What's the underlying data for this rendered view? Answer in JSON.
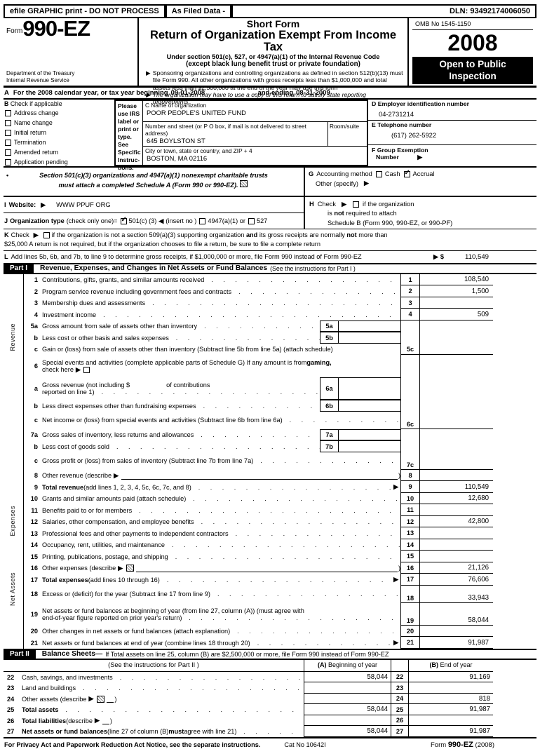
{
  "glyphs": {
    "arrow": "▶",
    "left_arrow": "◀",
    "bullet": "•",
    "dollar": "$",
    "dot": " ."
  },
  "topbar": {
    "left": "efile GRAPHIC print - DO NOT PROCESS",
    "mid": "As Filed Data -",
    "dln": "DLN: 93492174006050"
  },
  "header": {
    "form_word": "Form",
    "form_number": "990-EZ",
    "dept_line1": "Department of the Treasury",
    "dept_line2": "Internal Revenue Service",
    "short_form": "Short Form",
    "title": "Return of Organization Exempt From Income Tax",
    "under_section": "Under section 501(c), 527, or 4947(a)(1) of the Internal Revenue Code",
    "except": "(except black lung benefit trust or private foundation)",
    "bullet1": "Sponsoring organizations and controlling organizations as defined in section 512(b)(13) must file Form 990. All other organizations with gross receipts less than $1,000,000 and total assets less than $2,500,000 at the end of the year may use this form",
    "bullet2": "The organization may have to use a copy of this return to satisfy state reporting requirements.",
    "omb": "OMB No 1545-1150",
    "year": "2008",
    "open1": "Open to Public",
    "open2": "Inspection"
  },
  "line_a": {
    "prefix": "A",
    "text": "For the 2008 calendar year, or tax year beginning",
    "begin_date": "09-01-2008",
    "mid": ", and ending",
    "end_date": "08-31-2009"
  },
  "box_b": {
    "prefix": "B",
    "title": "Check if applicable",
    "items": [
      "Address change",
      "Name change",
      "Initial return",
      "Termination",
      "Amended return",
      "Application pending"
    ]
  },
  "label_col": [
    "Please",
    "use IRS",
    "label or",
    "print or",
    "type.",
    "See",
    "Specific",
    "Instruc-",
    "tions."
  ],
  "box_c": {
    "name_label": "C Name of organization",
    "name": "POOR PEOPLE'S UNITED FUND",
    "street_label": "Number and street (or P O box, if mail is not delivered to street address)",
    "room_label": "Room/suite",
    "street": "645 BOYLSTON ST",
    "city_label": "City or town, state or country, and ZIP + 4",
    "city": "BOSTON, MA 02116"
  },
  "box_d": {
    "label": "D Employer identification number",
    "value": "04-2731214"
  },
  "box_e": {
    "label": "E Telephone number",
    "value": "(617) 262-5922"
  },
  "box_f": {
    "line1": "F Group Exemption",
    "line2": "Number"
  },
  "notice_501": {
    "line1": "Section 501(c)(3) organizations and 4947(a)(1) nonexempt charitable trusts",
    "line2": "must attach a completed Schedule A (Form 990 or 990-EZ)."
  },
  "box_g": {
    "prefix": "G",
    "label": "Accounting method",
    "cash": "Cash",
    "accrual": "Accrual",
    "other": "Other (specify)"
  },
  "box_h": {
    "prefix": "H",
    "check": "Check",
    "text1": "if the organization",
    "text2a": "is ",
    "text2b": "not",
    "text2c": " required to attach",
    "text3": "Schedule B (Form 990, 990-EZ, or 990-PF)"
  },
  "box_i": {
    "prefix": "I",
    "label": "Website:",
    "value": "WWW PPUF ORG"
  },
  "box_j": {
    "prefix": "J",
    "label": "Organization type",
    "paren": "(check only one)=",
    "opt1": "501(c) (3)",
    "insert": "(insert no )",
    "opt2": "4947(a)(1) or",
    "opt3": "527"
  },
  "box_k": {
    "prefix": "K",
    "check": "Check",
    "line1a": "if the organization is not a section 509(a)(3) supporting organization ",
    "line1b": "and",
    "line1c": " its gross receipts are normally ",
    "line1d": "not",
    "line1e": " more than",
    "line2": "$25,000  A return is not required, but if the organization chooses to file a return, be sure to file a complete return"
  },
  "line_l": {
    "prefix": "L",
    "text": "Add lines 5b, 6b, and 7b, to line 9 to determine gross receipts, if $1,000,000 or more, file Form 990 instead of Form 990-EZ",
    "amount": "110,549"
  },
  "part1": {
    "tag": "Part I",
    "title": "Revenue, Expenses, and Changes in Net Assets or Fund Balances",
    "subtitle": "(See the instructions for Part I )"
  },
  "side_labels": {
    "revenue": "Revenue",
    "expenses": "Expenses",
    "net_assets": "Net Assets"
  },
  "part1_rows": [
    {
      "num": "1",
      "lines": [
        [
          {
            "t": "Contributions, gifts, grants, and similar amounts received"
          }
        ]
      ],
      "dots": true,
      "box": "1",
      "value": "108,540",
      "rule": true
    },
    {
      "num": "2",
      "lines": [
        [
          {
            "t": "Program service revenue including government fees and contracts"
          }
        ]
      ],
      "dots": true,
      "box": "2",
      "value": "1,500",
      "rule": true
    },
    {
      "num": "3",
      "lines": [
        [
          {
            "t": "Membership dues and assessments"
          }
        ]
      ],
      "dots": true,
      "box": "3",
      "value": "",
      "rule": true
    },
    {
      "num": "4",
      "lines": [
        [
          {
            "t": "Investment income"
          }
        ]
      ],
      "dots": true,
      "box": "4",
      "value": "509",
      "rule": true
    },
    {
      "num": "5a",
      "lines": [
        [
          {
            "t": "Gross amount from sale of assets other than inventory"
          }
        ]
      ],
      "dots": true,
      "inner": "5a"
    },
    {
      "num": "b",
      "lines": [
        [
          {
            "t": "Less  cost or other basis and sales expenses"
          }
        ]
      ],
      "dots": true,
      "inner": "5b"
    },
    {
      "num": "c",
      "lines": [
        [
          {
            "t": "Gain or (loss) from sale of assets other than inventory (Subtract line 5b from line 5a) (attach schedule)"
          }
        ]
      ],
      "box": "5c",
      "value": "",
      "rule": true
    },
    {
      "num": "6",
      "h": 32,
      "lines": [
        [
          {
            "t": "Special events and activities (complete applicable parts of Schedule G)  If any amount is from "
          },
          {
            "t": "gaming,",
            "b": true
          }
        ],
        [
          {
            "t": "check here"
          }
        ]
      ],
      "checkbox": true
    },
    {
      "num": "a",
      "h": 32,
      "lines": [
        [
          {
            "t": "Gross revenue (not including $"
          },
          {
            "sp": 52
          },
          {
            "t": "of contributions"
          }
        ],
        [
          {
            "t": "reported on line 1)"
          }
        ]
      ],
      "dots": true,
      "inner": "6a"
    },
    {
      "num": "b",
      "lines": [
        [
          {
            "t": "Less  direct expenses other than fundraising expenses"
          }
        ]
      ],
      "dots": true,
      "inner": "6b"
    },
    {
      "num": "c",
      "h": 25,
      "low": true,
      "lines": [
        [
          {
            "t": "Net income or (loss) from special events and activities (Subtract line 6b from line 6a)"
          }
        ]
      ],
      "dots": true,
      "box": "6c",
      "value": "",
      "rule": true
    },
    {
      "num": "7a",
      "lines": [
        [
          {
            "t": "Gross sales of inventory, less returns and allowances"
          }
        ]
      ],
      "dots": true,
      "inner": "7a"
    },
    {
      "num": "b",
      "lines": [
        [
          {
            "t": "Less  cost of goods sold"
          }
        ]
      ],
      "dots": true,
      "inner": "7b"
    },
    {
      "num": "c",
      "h": 25,
      "low": true,
      "lines": [
        [
          {
            "t": "Gross profit or (loss) from sales of inventory (Subtract line 7b from line 7a)"
          }
        ]
      ],
      "dots": true,
      "box": "7c",
      "value": "",
      "rule": true
    },
    {
      "num": "8",
      "lines": [
        [
          {
            "t": "Other revenue (describe"
          }
        ]
      ],
      "describe": true,
      "box": "8",
      "value": "",
      "rule": true
    },
    {
      "num": "9",
      "lines": [
        [
          {
            "t": "Total revenue ",
            "b": true
          },
          {
            "t": "(add lines 1, 2, 3, 4, 5c, 6c, 7c, and 8)"
          }
        ]
      ],
      "dots": true,
      "arrow": true,
      "box": "9",
      "value": "110,549",
      "rule": true
    },
    {
      "num": "10",
      "lines": [
        [
          {
            "t": "Grants and similar amounts paid (attach schedule)"
          }
        ]
      ],
      "dots": true,
      "box": "10",
      "value": "12,680",
      "rule": true
    },
    {
      "num": "11",
      "lines": [
        [
          {
            "t": "Benefits paid to or for members"
          }
        ]
      ],
      "dots": true,
      "box": "11",
      "value": "",
      "rule": true
    },
    {
      "num": "12",
      "lines": [
        [
          {
            "t": "Salaries, other compensation, and employee benefits"
          }
        ]
      ],
      "dots": true,
      "box": "12",
      "value": "42,800",
      "rule": true
    },
    {
      "num": "13",
      "lines": [
        [
          {
            "t": "Professional fees and other payments to independent contractors"
          }
        ]
      ],
      "dots": true,
      "box": "13",
      "value": "",
      "rule": true
    },
    {
      "num": "14",
      "lines": [
        [
          {
            "t": "Occupancy, rent, utilities, and maintenance"
          }
        ]
      ],
      "dots": true,
      "box": "14",
      "value": "",
      "rule": true
    },
    {
      "num": "15",
      "lines": [
        [
          {
            "t": "Printing, publications, postage, and shipping"
          }
        ]
      ],
      "dots": true,
      "box": "15",
      "value": "",
      "rule": true
    },
    {
      "num": "16",
      "lines": [
        [
          {
            "t": "Other expenses (describe"
          }
        ]
      ],
      "describe": true,
      "icon": true,
      "box": "16",
      "value": "21,126",
      "rule": true
    },
    {
      "num": "17",
      "lines": [
        [
          {
            "t": "Total expenses ",
            "b": true
          },
          {
            "t": "(add lines 10 through 16)"
          }
        ]
      ],
      "dots": true,
      "arrow": true,
      "box": "17",
      "value": "76,606",
      "rule": true
    },
    {
      "num": "18",
      "h": 25,
      "low": true,
      "lines": [
        [
          {
            "t": "Excess or (deficit) for the year (Subtract line 17 from line 9)"
          }
        ]
      ],
      "dots": true,
      "box": "18",
      "value": "33,943",
      "rule": true
    },
    {
      "num": "19",
      "h": 32,
      "low": true,
      "lines": [
        [
          {
            "t": "Net assets or fund balances at beginning of year (from line 27, column (A)) (must agree with"
          }
        ],
        [
          {
            "t": "end-of-year figure reported on prior year's return)"
          }
        ]
      ],
      "dots": true,
      "box": "19",
      "value": "58,044",
      "rule": true
    },
    {
      "num": "20",
      "lines": [
        [
          {
            "t": "Other changes in net assets or fund balances (attach explanation)"
          }
        ]
      ],
      "dots": true,
      "box": "20",
      "value": "",
      "rule": true
    },
    {
      "num": "21",
      "lines": [
        [
          {
            "t": "Net assets or fund balances at end of year (combine lines 18 through 20)"
          }
        ]
      ],
      "dots": true,
      "arrow": true,
      "box": "21",
      "value": "91,987",
      "rule": true
    }
  ],
  "part2": {
    "tag": "Part II",
    "title": "Balance Sheets",
    "dash": "—",
    "rest": "If Total assets on line 25, column (B) are $2,500,000 or more, file Form 990 instead of Form 990-EZ",
    "subtitle": "(See the instructions for Part II )",
    "col_a_bold": "(A)",
    "col_a": " Beginning of year",
    "col_b_bold": "(B)",
    "col_b": " End of year"
  },
  "part2_rows": [
    {
      "num": "22",
      "lines": [
        [
          {
            "t": "Cash, savings, and investments"
          }
        ]
      ],
      "dots": true,
      "a": "58,044",
      "box": "22",
      "b": "91,169"
    },
    {
      "num": "23",
      "lines": [
        [
          {
            "t": "Land and buildings"
          }
        ]
      ],
      "dots": true,
      "a": "",
      "box": "23",
      "b": ""
    },
    {
      "num": "24",
      "lines": [
        [
          {
            "t": "Other assets (describe"
          }
        ]
      ],
      "describe": true,
      "icon": true,
      "a": "",
      "box": "24",
      "b": "818"
    },
    {
      "num": "25",
      "lines": [
        [
          {
            "t": "Total assets",
            "b": true
          }
        ]
      ],
      "dots": true,
      "a": "58,044",
      "box": "25",
      "b": "91,987"
    },
    {
      "num": "26",
      "lines": [
        [
          {
            "t": "Total liabilities ",
            "b": true
          },
          {
            "t": "(describe"
          }
        ]
      ],
      "describe": true,
      "a": "",
      "box": "26",
      "b": ""
    },
    {
      "num": "27",
      "lines": [
        [
          {
            "t": "Net assets or fund balances ",
            "b": true
          },
          {
            "t": "(line 27 of column (B) "
          },
          {
            "t": "must",
            "b": true
          },
          {
            "t": " agree with line 21)"
          }
        ]
      ],
      "dots": true,
      "a": "58,044",
      "box": "27",
      "b": "91,987"
    }
  ],
  "footer": {
    "notice": "For Privacy Act and Paperwork Reduction Act Notice, see the separate instructions.",
    "cat": "Cat No 10642I",
    "form_word": "Form ",
    "form_number": "990-EZ",
    "year": " (2008)"
  }
}
